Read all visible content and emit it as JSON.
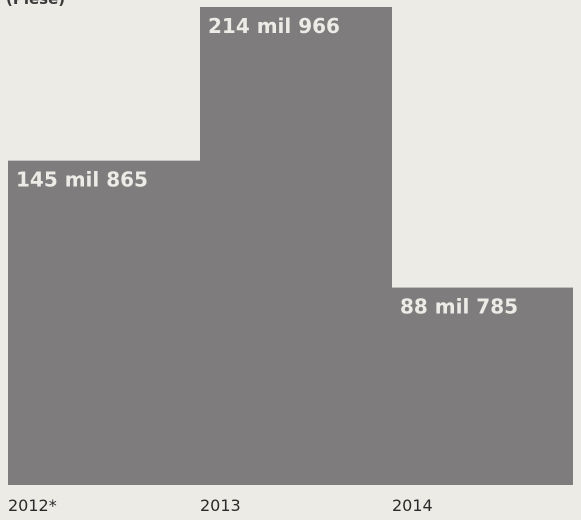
{
  "caption_fragment": "(Piese)",
  "chart_data": {
    "type": "bar",
    "categories": [
      "2012*",
      "2013",
      "2014"
    ],
    "values": [
      145865,
      214966,
      88785
    ],
    "data_labels": [
      "145 mil 865",
      "214 mil 966",
      "88 mil 785"
    ],
    "ylim": [
      0,
      214966
    ],
    "grid": false,
    "legend": "none",
    "colors": {
      "bar": "#7e7c7d",
      "label": "#ecebe6",
      "background": "#ecebe6"
    }
  }
}
